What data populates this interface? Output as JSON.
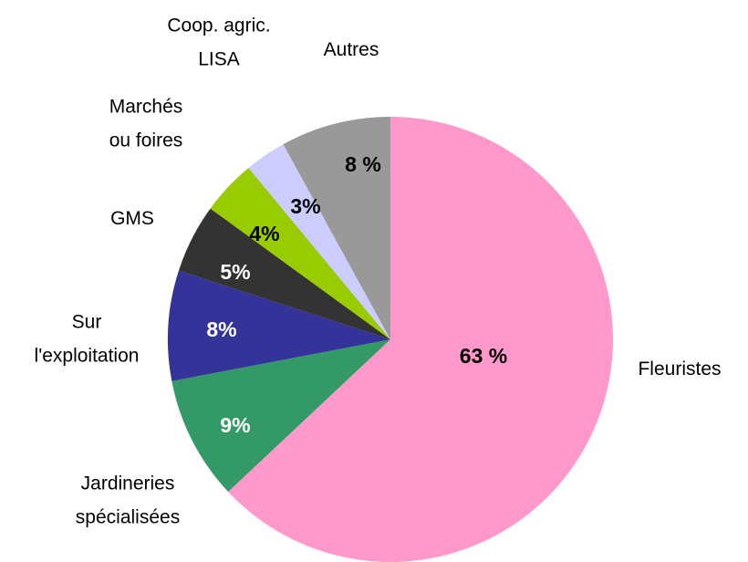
{
  "chart_data": {
    "type": "pie",
    "categories": [
      "Fleuristes",
      "Jardineries\nspécialisées",
      "Sur\nl'exploitation",
      "GMS",
      "Marchés\nou foires",
      "Coop. agric.\nLISA",
      "Autres"
    ],
    "values": [
      63,
      9,
      8,
      5,
      4,
      3,
      8
    ],
    "value_labels": [
      "63 %",
      "9%",
      "8%",
      "5%",
      "4%",
      "3%",
      "8 %"
    ],
    "colors": [
      "#ff99cc",
      "#339966",
      "#333399",
      "#333333",
      "#99cc00",
      "#ccccff",
      "#999999"
    ]
  }
}
